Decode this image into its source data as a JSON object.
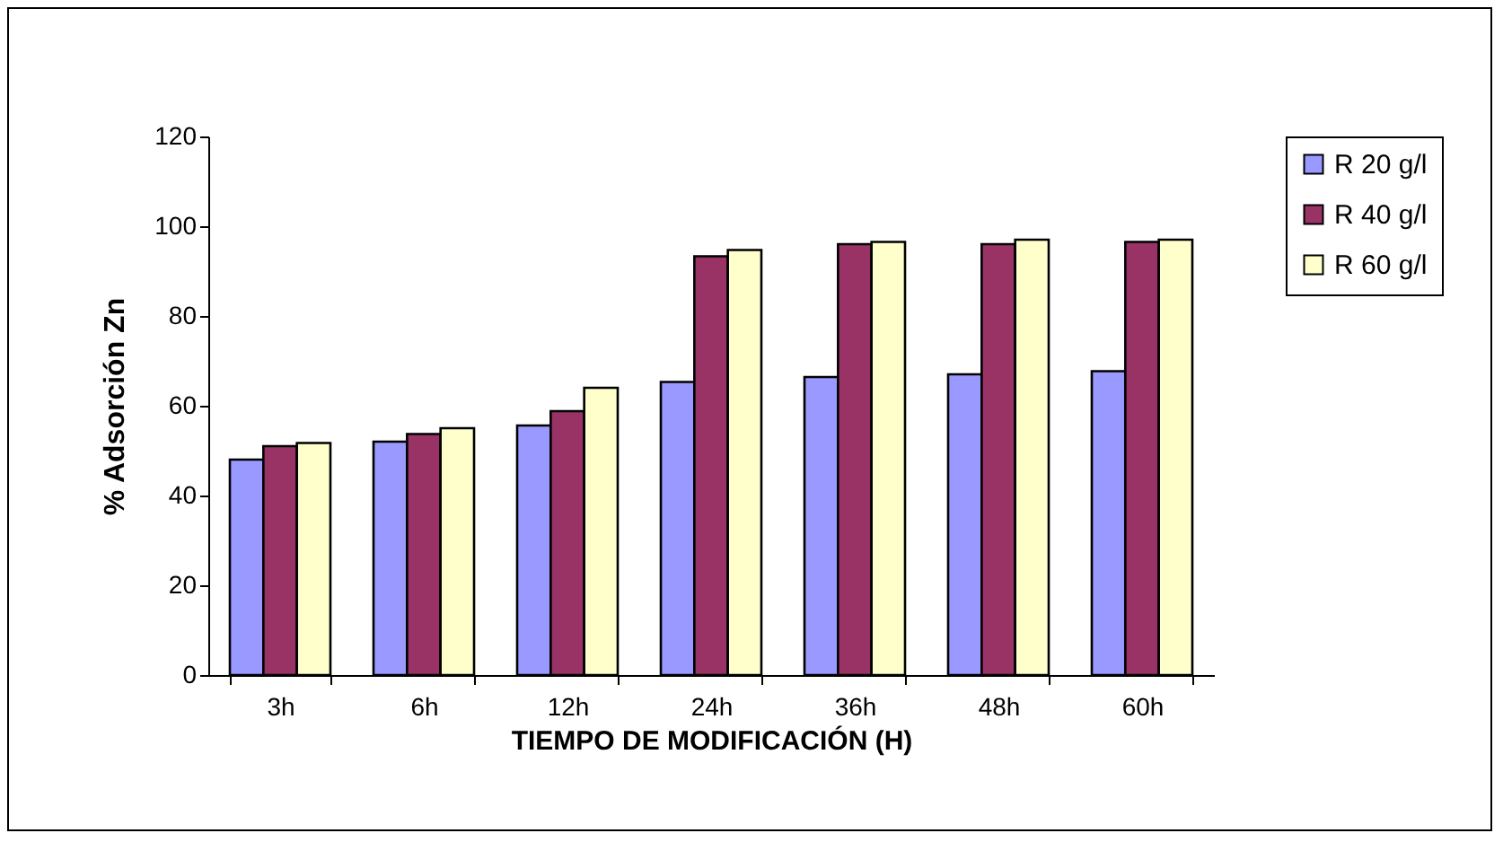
{
  "chart_data": {
    "type": "bar",
    "xlabel": "TIEMPO DE MODIFICACIÓN (H)",
    "ylabel": "% Adsorción Zn",
    "categories": [
      "3h",
      "6h",
      "12h",
      "24h",
      "36h",
      "48h",
      "60h"
    ],
    "series": [
      {
        "name": "R 20 g/l",
        "color": "#9999ff",
        "values": [
          48,
          52,
          55.6,
          65.3,
          66.4,
          67,
          67.7
        ]
      },
      {
        "name": "R 40 g/l",
        "color": "#993366",
        "values": [
          51,
          53.7,
          58.8,
          93.3,
          96,
          96,
          96.5
        ]
      },
      {
        "name": "R 60 g/l",
        "color": "#ffffcc",
        "values": [
          51.7,
          55,
          64,
          94.7,
          96.5,
          97,
          97
        ]
      }
    ],
    "ylim": [
      0,
      120
    ],
    "yticks": [
      0,
      20,
      40,
      60,
      80,
      100,
      120
    ],
    "grid": false,
    "legend": "right"
  }
}
